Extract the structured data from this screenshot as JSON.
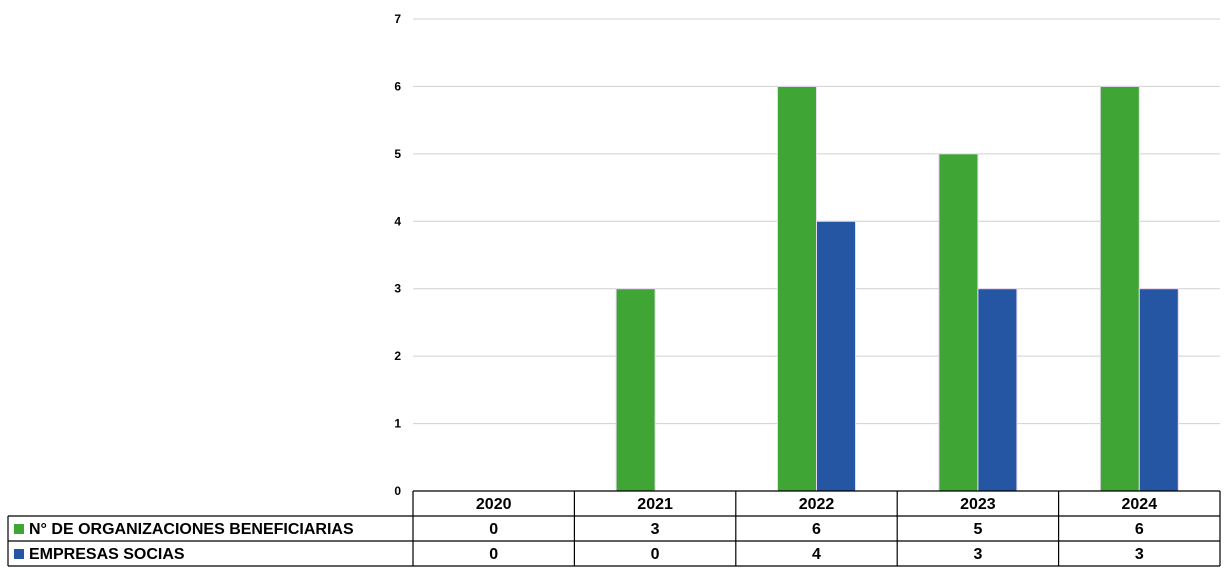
{
  "chart_data": {
    "type": "bar",
    "title": "",
    "xlabel": "",
    "ylabel": "",
    "categories": [
      "2020",
      "2021",
      "2022",
      "2023",
      "2024"
    ],
    "series": [
      {
        "name": "N° DE ORGANIZACIONES BENEFICIARIAS",
        "values": [
          0,
          3,
          6,
          5,
          6
        ],
        "color": "#3fa535"
      },
      {
        "name": "EMPRESAS SOCIAS",
        "values": [
          0,
          0,
          4,
          3,
          3
        ],
        "color": "#2456a4"
      }
    ],
    "ylim": [
      0,
      7
    ],
    "yticks": [
      0,
      1,
      2,
      3,
      4,
      5,
      6,
      7
    ],
    "grid": true,
    "legend": "data-table"
  }
}
